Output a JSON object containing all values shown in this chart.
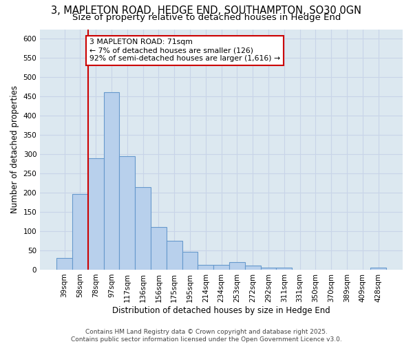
{
  "title_line1": "3, MAPLETON ROAD, HEDGE END, SOUTHAMPTON, SO30 0GN",
  "title_line2": "Size of property relative to detached houses in Hedge End",
  "xlabel": "Distribution of detached houses by size in Hedge End",
  "ylabel": "Number of detached properties",
  "categories": [
    "39sqm",
    "58sqm",
    "78sqm",
    "97sqm",
    "117sqm",
    "136sqm",
    "156sqm",
    "175sqm",
    "195sqm",
    "214sqm",
    "234sqm",
    "253sqm",
    "272sqm",
    "292sqm",
    "311sqm",
    "331sqm",
    "350sqm",
    "370sqm",
    "389sqm",
    "409sqm",
    "428sqm"
  ],
  "values": [
    30,
    197,
    290,
    461,
    295,
    215,
    110,
    75,
    47,
    13,
    13,
    20,
    10,
    5,
    5,
    0,
    0,
    0,
    0,
    0,
    5
  ],
  "bar_color": "#b8d0ec",
  "bar_edge_color": "#6699cc",
  "vline_color": "#cc0000",
  "annotation_text": "3 MAPLETON ROAD: 71sqm\n← 7% of detached houses are smaller (126)\n92% of semi-detached houses are larger (1,616) →",
  "annotation_box_color": "#ffffff",
  "annotation_box_edge": "#cc0000",
  "ylim": [
    0,
    625
  ],
  "yticks": [
    0,
    50,
    100,
    150,
    200,
    250,
    300,
    350,
    400,
    450,
    500,
    550,
    600
  ],
  "grid_color": "#c8d4e8",
  "bg_color": "#dce8f0",
  "footer": "Contains HM Land Registry data © Crown copyright and database right 2025.\nContains public sector information licensed under the Open Government Licence v3.0.",
  "title_fontsize": 10.5,
  "subtitle_fontsize": 9.5,
  "axis_label_fontsize": 8.5,
  "tick_fontsize": 7.5,
  "footer_fontsize": 6.5
}
